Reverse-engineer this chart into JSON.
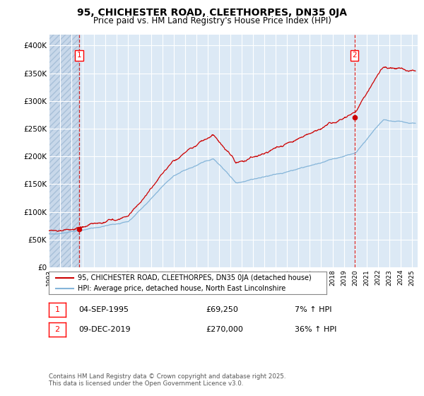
{
  "title": "95, CHICHESTER ROAD, CLEETHORPES, DN35 0JA",
  "subtitle": "Price paid vs. HM Land Registry's House Price Index (HPI)",
  "title_fontsize": 10,
  "subtitle_fontsize": 8.5,
  "background_color": "#ffffff",
  "plot_bg_color": "#dce9f5",
  "hatch_color": "#c8d8ea",
  "grid_color": "#ffffff",
  "red_color": "#cc0000",
  "blue_color": "#85b5d9",
  "ylim": [
    0,
    420000
  ],
  "yticks": [
    0,
    50000,
    100000,
    150000,
    200000,
    250000,
    300000,
    350000,
    400000
  ],
  "ytick_labels": [
    "£0",
    "£50K",
    "£100K",
    "£150K",
    "£200K",
    "£250K",
    "£300K",
    "£350K",
    "£400K"
  ],
  "xlim_start": 1993.0,
  "xlim_end": 2025.5,
  "sale1_date": 1995.67,
  "sale1_price": 69250,
  "sale1_label": "1",
  "sale2_date": 2019.93,
  "sale2_price": 270000,
  "sale2_label": "2",
  "legend_line1": "95, CHICHESTER ROAD, CLEETHORPES, DN35 0JA (detached house)",
  "legend_line2": "HPI: Average price, detached house, North East Lincolnshire",
  "annotation1_date": "04-SEP-1995",
  "annotation1_price": "£69,250",
  "annotation1_hpi": "7% ↑ HPI",
  "annotation2_date": "09-DEC-2019",
  "annotation2_price": "£270,000",
  "annotation2_hpi": "36% ↑ HPI",
  "footer": "Contains HM Land Registry data © Crown copyright and database right 2025.\nThis data is licensed under the Open Government Licence v3.0.",
  "xtick_years": [
    1993,
    1994,
    1995,
    1996,
    1997,
    1998,
    1999,
    2000,
    2001,
    2002,
    2003,
    2004,
    2005,
    2006,
    2007,
    2008,
    2009,
    2010,
    2011,
    2012,
    2013,
    2014,
    2015,
    2016,
    2017,
    2018,
    2019,
    2020,
    2021,
    2022,
    2023,
    2024,
    2025
  ]
}
